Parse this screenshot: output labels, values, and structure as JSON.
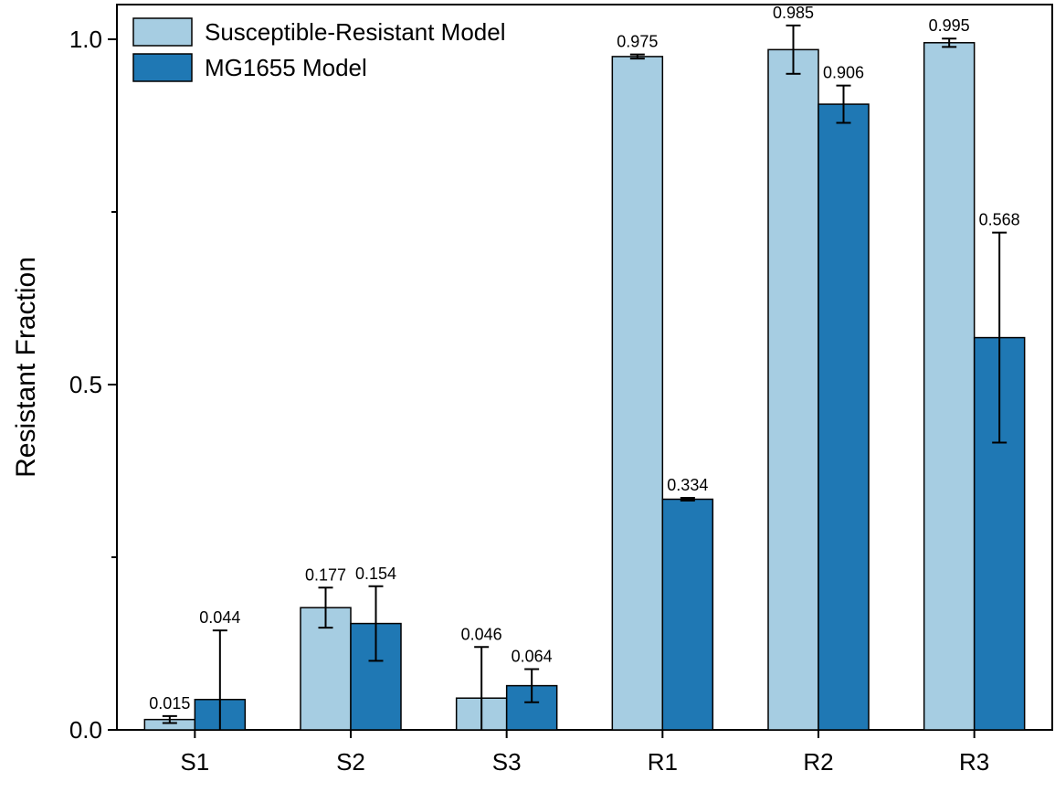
{
  "chart_data": {
    "type": "bar",
    "categories": [
      "S1",
      "S2",
      "S3",
      "R1",
      "R2",
      "R3"
    ],
    "series": [
      {
        "name": "Susceptible-Resistant Model",
        "color": "#a6cde2",
        "values": [
          0.015,
          0.177,
          0.046,
          0.975,
          0.985,
          0.995
        ],
        "errors": [
          0.005,
          0.029,
          0.074,
          0.003,
          0.035,
          0.006
        ],
        "labels": [
          "0.015",
          "0.177",
          "0.046",
          "0.975",
          "0.985",
          "0.995"
        ]
      },
      {
        "name": "MG1655 Model",
        "color": "#1f78b4",
        "values": [
          0.044,
          0.154,
          0.064,
          0.334,
          0.906,
          0.568
        ],
        "errors": [
          0.1,
          0.054,
          0.024,
          0.002,
          0.027,
          0.152
        ],
        "labels": [
          "0.044",
          "0.154",
          "0.064",
          "0.334",
          "0.906",
          "0.568"
        ]
      }
    ],
    "title": "",
    "xlabel": "",
    "ylabel": "Resistant Fraction",
    "ylim": [
      0,
      1.05
    ],
    "yticks": [
      0.0,
      0.5,
      1.0
    ],
    "ytick_labels": [
      "0.0",
      "0.5",
      "1.0"
    ],
    "legend_position": "top-left",
    "grid": false
  }
}
